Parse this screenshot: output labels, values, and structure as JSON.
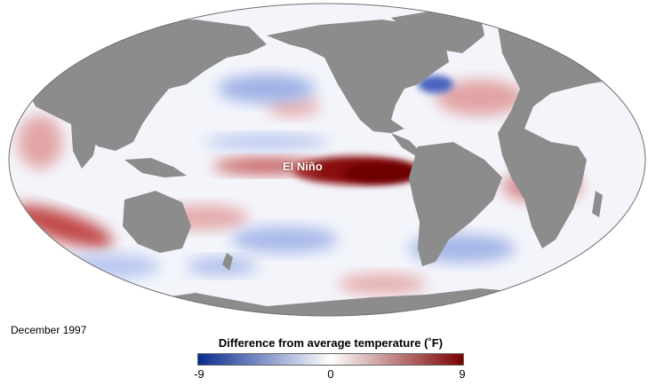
{
  "map": {
    "annotation": "El Niño",
    "date": "December 1997"
  },
  "legend": {
    "title": "Difference from average temperature (˚F)",
    "min_label": "-9",
    "mid_label": "0",
    "max_label": "9",
    "colors": {
      "cold": "#0a2b8f",
      "neutral": "#ffffff",
      "warm": "#7a0000"
    }
  },
  "colors": {
    "land": "#8c8c8c",
    "ocean_base": "#f3f5fb",
    "warm_anomaly": "#9b1b1b",
    "cool_anomaly": "#6d87d6"
  }
}
